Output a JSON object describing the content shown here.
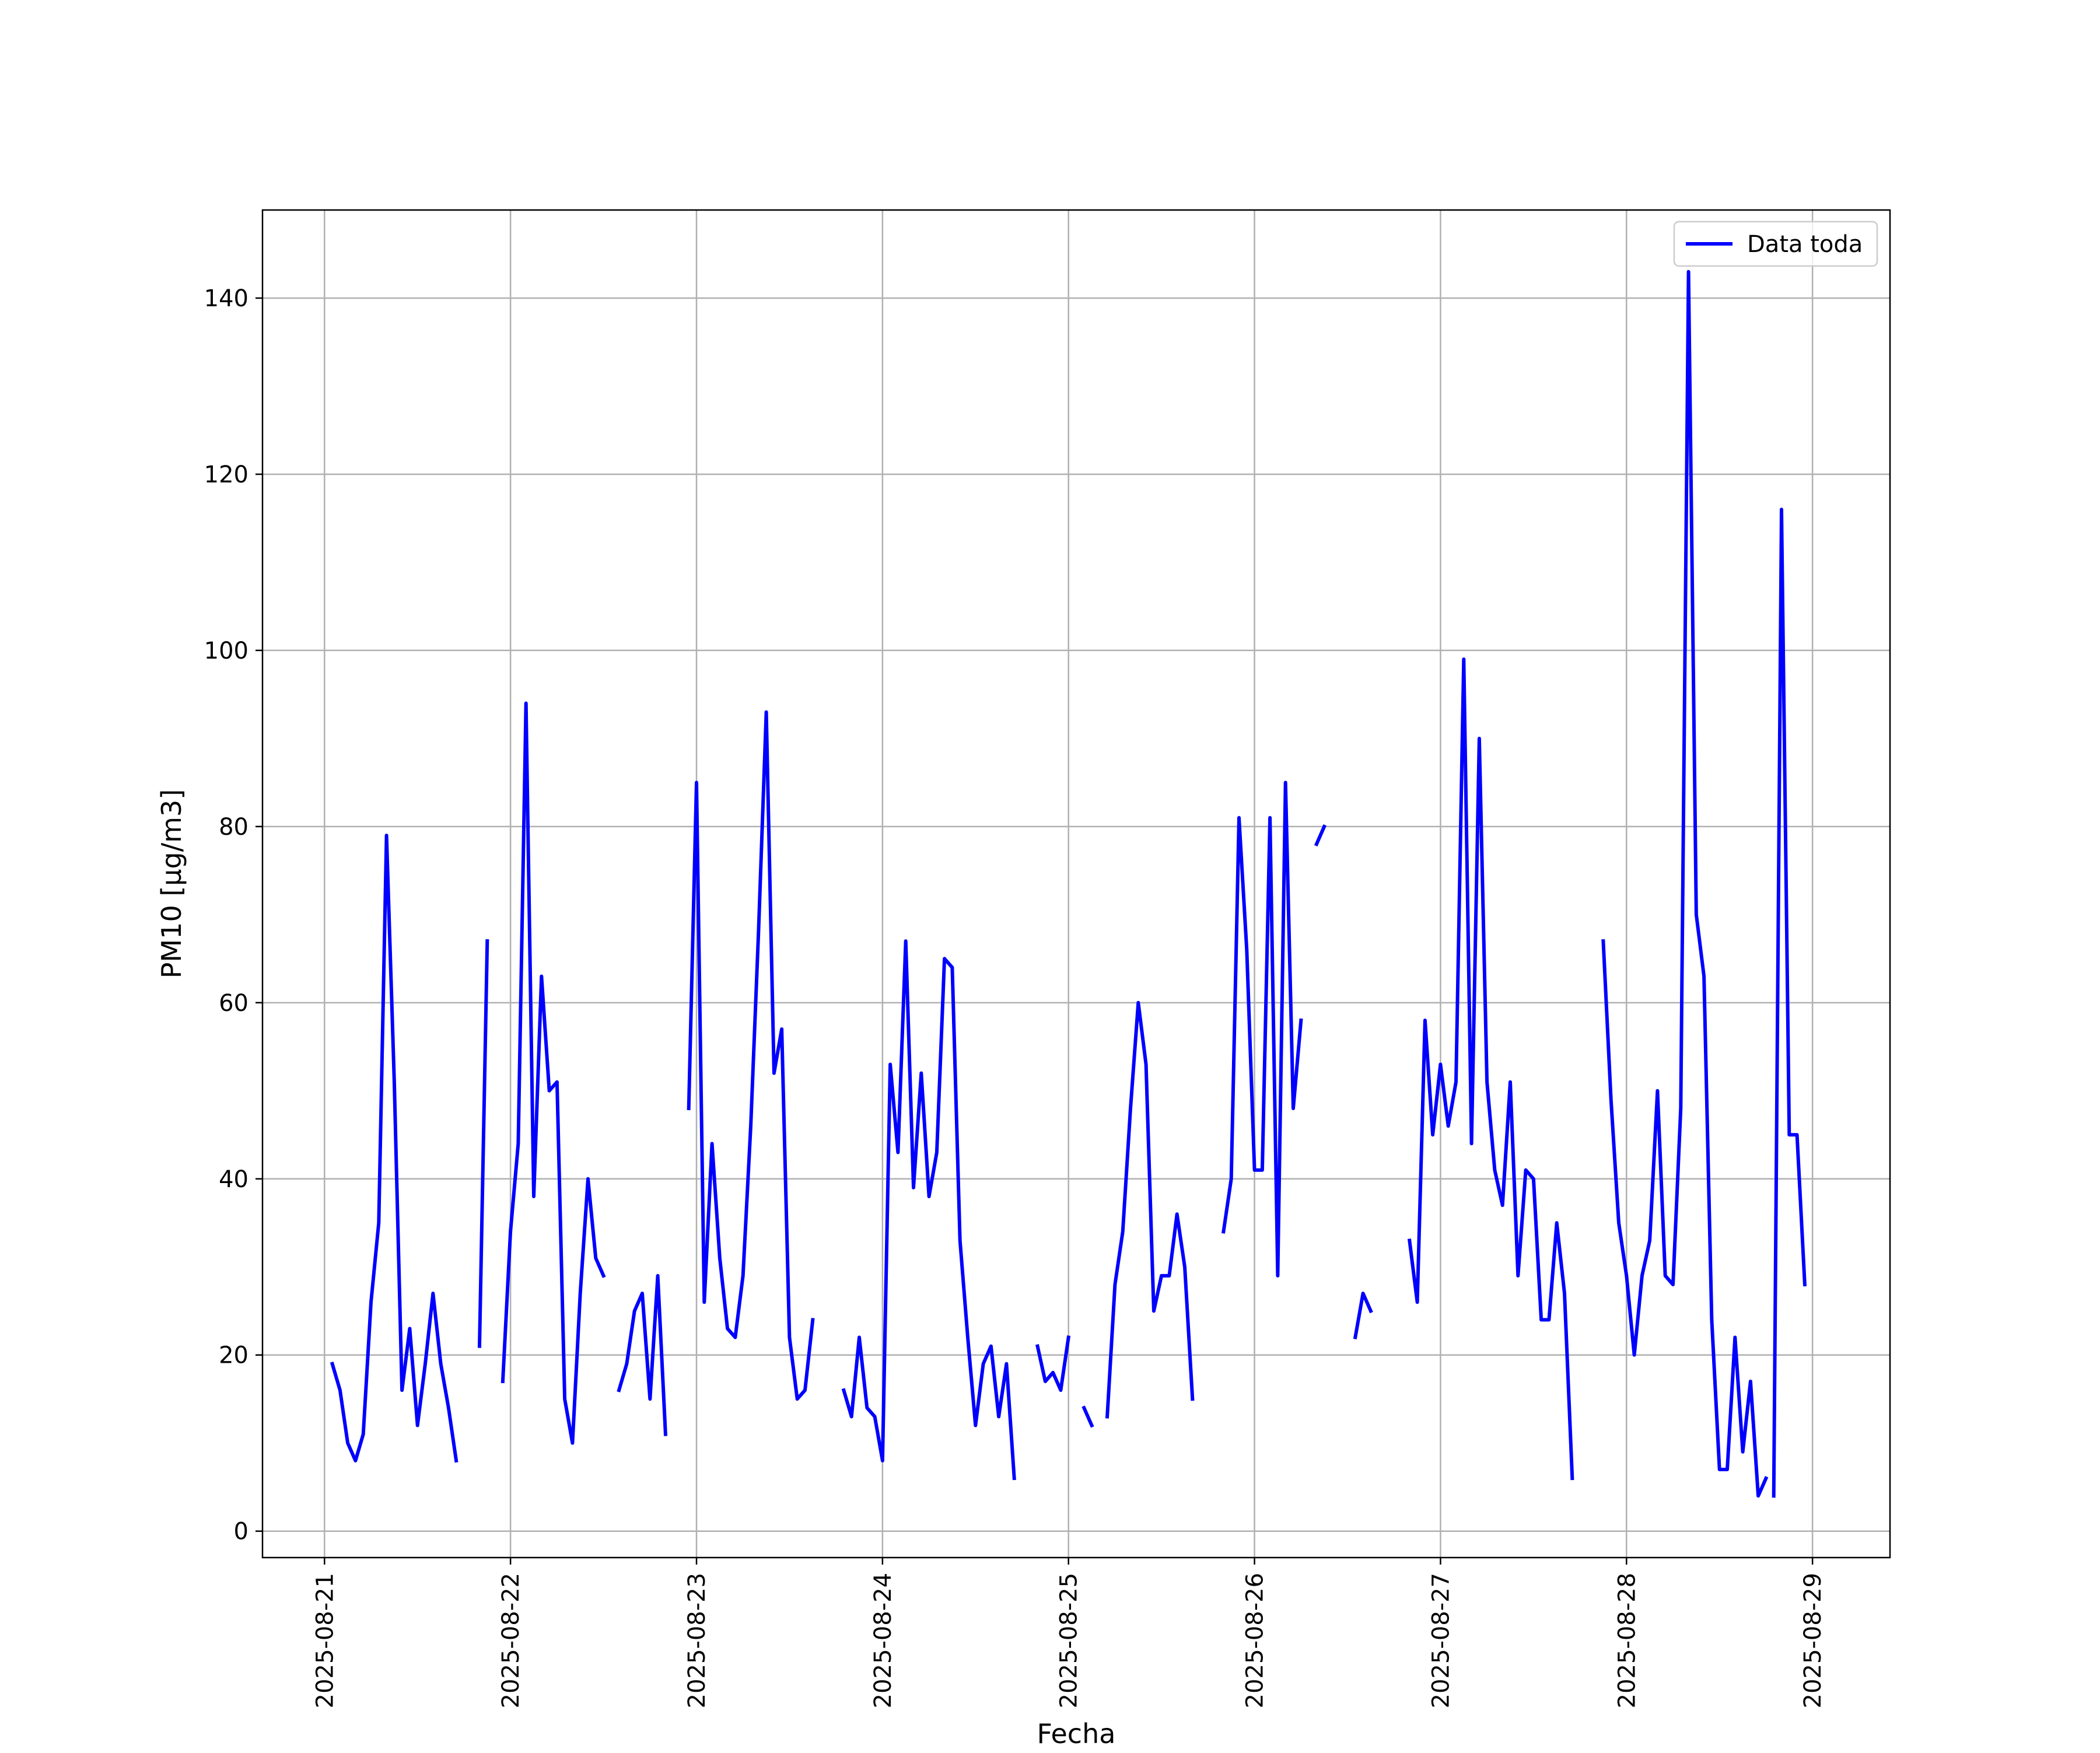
{
  "chart_data": {
    "type": "line",
    "title": "",
    "xlabel": "Fecha",
    "ylabel": "PM10 [μg/m3]",
    "x_ticks": [
      "2025-08-21",
      "2025-08-22",
      "2025-08-23",
      "2025-08-24",
      "2025-08-25",
      "2025-08-26",
      "2025-08-27",
      "2025-08-28",
      "2025-08-29"
    ],
    "y_ticks": [
      0,
      20,
      40,
      60,
      80,
      100,
      120,
      140
    ],
    "xlim": [
      "2025-08-20 16:00",
      "2025-08-29 10:00"
    ],
    "ylim": [
      -3,
      150
    ],
    "grid": true,
    "legend": "top-right",
    "colors": {
      "series": "#0000ff",
      "grid": "#b0b0b0"
    },
    "series": [
      {
        "name": "Data toda",
        "segments": [
          [
            [
              "2025-08-21 01:00",
              19
            ],
            [
              "2025-08-21 02:00",
              16
            ],
            [
              "2025-08-21 03:00",
              10
            ],
            [
              "2025-08-21 04:00",
              8
            ],
            [
              "2025-08-21 05:00",
              11
            ],
            [
              "2025-08-21 06:00",
              26
            ],
            [
              "2025-08-21 07:00",
              35
            ],
            [
              "2025-08-21 08:00",
              79
            ],
            [
              "2025-08-21 09:00",
              51
            ],
            [
              "2025-08-21 10:00",
              16
            ],
            [
              "2025-08-21 11:00",
              23
            ],
            [
              "2025-08-21 12:00",
              12
            ],
            [
              "2025-08-21 13:00",
              19
            ],
            [
              "2025-08-21 14:00",
              27
            ],
            [
              "2025-08-21 15:00",
              19
            ],
            [
              "2025-08-21 16:00",
              14
            ],
            [
              "2025-08-21 17:00",
              8
            ]
          ],
          [
            [
              "2025-08-21 20:00",
              21
            ],
            [
              "2025-08-21 21:00",
              67
            ]
          ],
          [
            [
              "2025-08-21 23:00",
              17
            ],
            [
              "2025-08-22 00:00",
              34
            ],
            [
              "2025-08-22 01:00",
              44
            ],
            [
              "2025-08-22 02:00",
              94
            ],
            [
              "2025-08-22 03:00",
              38
            ],
            [
              "2025-08-22 04:00",
              63
            ],
            [
              "2025-08-22 05:00",
              50
            ],
            [
              "2025-08-22 06:00",
              51
            ],
            [
              "2025-08-22 07:00",
              15
            ],
            [
              "2025-08-22 08:00",
              10
            ],
            [
              "2025-08-22 09:00",
              27
            ],
            [
              "2025-08-22 10:00",
              40
            ],
            [
              "2025-08-22 11:00",
              31
            ],
            [
              "2025-08-22 12:00",
              29
            ]
          ],
          [
            [
              "2025-08-22 14:00",
              16
            ],
            [
              "2025-08-22 15:00",
              19
            ],
            [
              "2025-08-22 16:00",
              25
            ],
            [
              "2025-08-22 17:00",
              27
            ],
            [
              "2025-08-22 18:00",
              15
            ],
            [
              "2025-08-22 19:00",
              29
            ],
            [
              "2025-08-22 20:00",
              11
            ]
          ],
          [
            [
              "2025-08-22 23:00",
              48
            ],
            [
              "2025-08-23 00:00",
              85
            ],
            [
              "2025-08-23 01:00",
              26
            ],
            [
              "2025-08-23 02:00",
              44
            ],
            [
              "2025-08-23 03:00",
              31
            ],
            [
              "2025-08-23 04:00",
              23
            ],
            [
              "2025-08-23 05:00",
              22
            ],
            [
              "2025-08-23 06:00",
              29
            ],
            [
              "2025-08-23 07:00",
              46
            ],
            [
              "2025-08-23 08:00",
              68
            ],
            [
              "2025-08-23 09:00",
              93
            ],
            [
              "2025-08-23 10:00",
              52
            ],
            [
              "2025-08-23 11:00",
              57
            ],
            [
              "2025-08-23 12:00",
              22
            ],
            [
              "2025-08-23 13:00",
              15
            ],
            [
              "2025-08-23 14:00",
              16
            ],
            [
              "2025-08-23 15:00",
              24
            ]
          ],
          [
            [
              "2025-08-23 19:00",
              16
            ],
            [
              "2025-08-23 20:00",
              13
            ],
            [
              "2025-08-23 21:00",
              22
            ],
            [
              "2025-08-23 22:00",
              14
            ],
            [
              "2025-08-23 23:00",
              13
            ],
            [
              "2025-08-24 00:00",
              8
            ],
            [
              "2025-08-24 01:00",
              53
            ],
            [
              "2025-08-24 02:00",
              43
            ],
            [
              "2025-08-24 03:00",
              67
            ],
            [
              "2025-08-24 04:00",
              39
            ],
            [
              "2025-08-24 05:00",
              52
            ],
            [
              "2025-08-24 06:00",
              38
            ],
            [
              "2025-08-24 07:00",
              43
            ],
            [
              "2025-08-24 08:00",
              65
            ],
            [
              "2025-08-24 09:00",
              64
            ],
            [
              "2025-08-24 10:00",
              33
            ],
            [
              "2025-08-24 11:00",
              22
            ],
            [
              "2025-08-24 12:00",
              12
            ],
            [
              "2025-08-24 13:00",
              19
            ],
            [
              "2025-08-24 14:00",
              21
            ],
            [
              "2025-08-24 15:00",
              13
            ],
            [
              "2025-08-24 16:00",
              19
            ],
            [
              "2025-08-24 17:00",
              6
            ]
          ],
          [
            [
              "2025-08-24 20:00",
              21
            ],
            [
              "2025-08-24 21:00",
              17
            ],
            [
              "2025-08-24 22:00",
              18
            ],
            [
              "2025-08-24 23:00",
              16
            ],
            [
              "2025-08-25 00:00",
              22
            ]
          ],
          [
            [
              "2025-08-25 02:00",
              14
            ],
            [
              "2025-08-25 03:00",
              12
            ]
          ],
          [
            [
              "2025-08-25 05:00",
              13
            ],
            [
              "2025-08-25 06:00",
              28
            ],
            [
              "2025-08-25 07:00",
              34
            ],
            [
              "2025-08-25 08:00",
              48
            ],
            [
              "2025-08-25 09:00",
              60
            ],
            [
              "2025-08-25 10:00",
              53
            ],
            [
              "2025-08-25 11:00",
              25
            ],
            [
              "2025-08-25 12:00",
              29
            ],
            [
              "2025-08-25 13:00",
              29
            ],
            [
              "2025-08-25 14:00",
              36
            ],
            [
              "2025-08-25 15:00",
              30
            ],
            [
              "2025-08-25 16:00",
              15
            ]
          ],
          [
            [
              "2025-08-25 20:00",
              34
            ],
            [
              "2025-08-25 21:00",
              40
            ],
            [
              "2025-08-25 22:00",
              81
            ],
            [
              "2025-08-25 23:00",
              66
            ],
            [
              "2025-08-26 00:00",
              41
            ],
            [
              "2025-08-26 01:00",
              41
            ],
            [
              "2025-08-26 02:00",
              81
            ],
            [
              "2025-08-26 03:00",
              29
            ],
            [
              "2025-08-26 04:00",
              85
            ],
            [
              "2025-08-26 05:00",
              48
            ],
            [
              "2025-08-26 06:00",
              58
            ]
          ],
          [
            [
              "2025-08-26 08:00",
              78
            ],
            [
              "2025-08-26 09:00",
              80
            ]
          ],
          [
            [
              "2025-08-26 13:00",
              22
            ],
            [
              "2025-08-26 14:00",
              27
            ],
            [
              "2025-08-26 15:00",
              25
            ]
          ],
          [
            [
              "2025-08-26 20:00",
              33
            ],
            [
              "2025-08-26 21:00",
              26
            ],
            [
              "2025-08-26 22:00",
              58
            ],
            [
              "2025-08-26 23:00",
              45
            ],
            [
              "2025-08-27 00:00",
              53
            ],
            [
              "2025-08-27 01:00",
              46
            ],
            [
              "2025-08-27 02:00",
              51
            ],
            [
              "2025-08-27 03:00",
              99
            ],
            [
              "2025-08-27 04:00",
              44
            ],
            [
              "2025-08-27 05:00",
              90
            ],
            [
              "2025-08-27 06:00",
              51
            ],
            [
              "2025-08-27 07:00",
              41
            ],
            [
              "2025-08-27 08:00",
              37
            ],
            [
              "2025-08-27 09:00",
              51
            ],
            [
              "2025-08-27 10:00",
              29
            ],
            [
              "2025-08-27 11:00",
              41
            ],
            [
              "2025-08-27 12:00",
              40
            ],
            [
              "2025-08-27 13:00",
              24
            ],
            [
              "2025-08-27 14:00",
              24
            ],
            [
              "2025-08-27 15:00",
              35
            ],
            [
              "2025-08-27 16:00",
              27
            ],
            [
              "2025-08-27 17:00",
              6
            ]
          ],
          [
            [
              "2025-08-27 21:00",
              67
            ],
            [
              "2025-08-27 22:00",
              49
            ],
            [
              "2025-08-27 23:00",
              35
            ],
            [
              "2025-08-28 00:00",
              29
            ],
            [
              "2025-08-28 01:00",
              20
            ],
            [
              "2025-08-28 02:00",
              29
            ],
            [
              "2025-08-28 03:00",
              33
            ],
            [
              "2025-08-28 04:00",
              50
            ],
            [
              "2025-08-28 05:00",
              29
            ],
            [
              "2025-08-28 06:00",
              28
            ],
            [
              "2025-08-28 07:00",
              48
            ],
            [
              "2025-08-28 08:00",
              143
            ],
            [
              "2025-08-28 09:00",
              70
            ],
            [
              "2025-08-28 10:00",
              63
            ],
            [
              "2025-08-28 11:00",
              24
            ],
            [
              "2025-08-28 12:00",
              7
            ],
            [
              "2025-08-28 13:00",
              7
            ],
            [
              "2025-08-28 14:00",
              22
            ],
            [
              "2025-08-28 15:00",
              9
            ],
            [
              "2025-08-28 16:00",
              17
            ],
            [
              "2025-08-28 17:00",
              4
            ],
            [
              "2025-08-28 18:00",
              6
            ]
          ],
          [
            [
              "2025-08-28 19:00",
              4
            ],
            [
              "2025-08-28 20:00",
              116
            ],
            [
              "2025-08-28 21:00",
              45
            ],
            [
              "2025-08-28 22:00",
              45
            ],
            [
              "2025-08-28 23:00",
              28
            ]
          ]
        ]
      }
    ]
  }
}
